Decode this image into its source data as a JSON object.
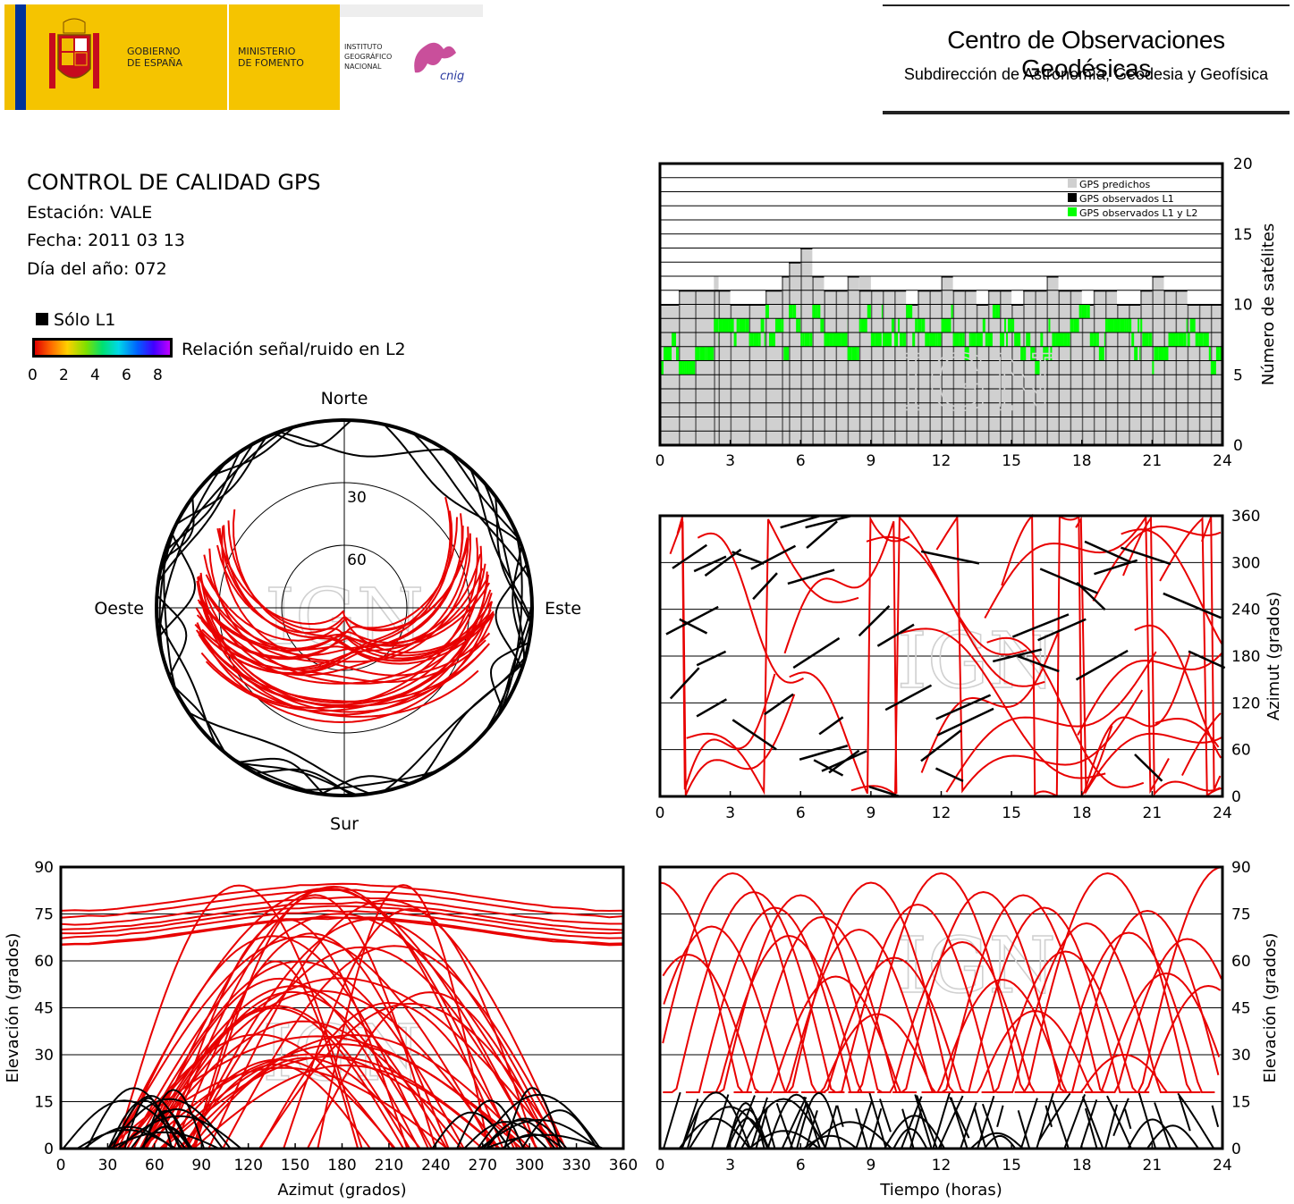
{
  "header": {
    "gov_line1": "GOBIERNO",
    "gov_line2": "DE ESPAÑA",
    "min_line1": "MINISTERIO",
    "min_line2": "DE FOMENTO",
    "ign_line1": "INSTITUTO",
    "ign_line2": "GEOGRÁFICO",
    "ign_line3": "NACIONAL",
    "cnig": "cnig",
    "center_title": "Centro de Observaciones Geodésicas",
    "center_subtitle": "Subdirección de Astronomía, Geodesia y Geofísica"
  },
  "info": {
    "title": "CONTROL DE CALIDAD GPS",
    "station": "Estación: VALE",
    "date": "Fecha: 2011 03 13",
    "doy": "Día del año: 072",
    "solo_l1": "Sólo L1",
    "snr_label": "Relación señal/ruido en L2",
    "snr_ticks": [
      "0",
      "2",
      "4",
      "6",
      "8"
    ]
  },
  "watermark": "IGN",
  "colors": {
    "predicted": "#d0d0d0",
    "observed_l1": "#000000",
    "observed_l1_l2": "#00ff00",
    "track_l2": "#e80000",
    "track_l1": "#000000"
  },
  "chart_data": [
    {
      "type": "area",
      "id": "satellites",
      "ylabel": "Número de satélites",
      "legend": [
        "GPS predichos",
        "GPS observados L1",
        "GPS observados L1 y L2"
      ],
      "legend_position": "top-right",
      "x_ticks": [
        "0",
        "3",
        "6",
        "9",
        "12",
        "15",
        "18",
        "21",
        "24"
      ],
      "y_ticks": [
        "0",
        "5",
        "10",
        "15",
        "20"
      ],
      "xlim": [
        0,
        24
      ],
      "ylim": [
        0,
        20
      ],
      "grid": true,
      "series": [
        {
          "name": "GPS predichos",
          "x": [
            0,
            0.8,
            1.5,
            2.3,
            2.5,
            3,
            3.8,
            4.5,
            5.2,
            5.5,
            6,
            6.5,
            7,
            7.5,
            8,
            8.5,
            9,
            9.5,
            10,
            10.5,
            11,
            11.5,
            12,
            12.5,
            13,
            13.5,
            14,
            14.5,
            15,
            15.5,
            16,
            16.5,
            17,
            17.5,
            18,
            18.5,
            19,
            19.5,
            20,
            20.5,
            21,
            21.5,
            22,
            22.5,
            23,
            23.5,
            24
          ],
          "values": [
            10,
            11,
            11,
            12,
            11,
            10,
            10,
            11,
            12,
            13,
            14,
            12,
            11,
            11,
            12,
            12,
            11,
            11,
            11,
            10,
            11,
            11,
            12,
            11,
            11,
            10,
            11,
            11,
            10,
            11,
            11,
            12,
            11,
            11,
            10,
            11,
            11,
            10,
            10,
            11,
            12,
            11,
            11,
            10,
            10,
            10,
            10
          ]
        },
        {
          "name": "GPS observados L1",
          "x": [
            0,
            0.8,
            1.5,
            2.3,
            2.5,
            3,
            3.8,
            4.5,
            5.2,
            5.5,
            6,
            6.5,
            7,
            7.5,
            8,
            8.5,
            9,
            9.5,
            10,
            10.5,
            11,
            11.5,
            12,
            12.5,
            13,
            13.5,
            14,
            14.5,
            15,
            15.5,
            16,
            16.5,
            17,
            17.5,
            18,
            18.5,
            19,
            19.5,
            20,
            20.5,
            21,
            21.5,
            22,
            22.5,
            23,
            23.5,
            24
          ],
          "values": [
            10,
            11,
            11,
            11,
            11,
            10,
            10,
            11,
            12,
            13,
            14,
            12,
            11,
            11,
            12,
            11,
            11,
            11,
            11,
            10,
            11,
            11,
            12,
            11,
            11,
            10,
            11,
            11,
            10,
            11,
            11,
            12,
            11,
            11,
            10,
            11,
            11,
            10,
            10,
            11,
            12,
            11,
            11,
            10,
            10,
            10,
            10
          ]
        },
        {
          "name": "GPS observados L1 y L2",
          "x": [
            0,
            0.8,
            1.5,
            2.3,
            2.5,
            3,
            3.8,
            4.5,
            5.2,
            5.5,
            6,
            6.5,
            7,
            7.5,
            8,
            8.5,
            9,
            9.5,
            10,
            10.5,
            11,
            11.5,
            12,
            12.5,
            13,
            13.5,
            14,
            14.5,
            15,
            15.5,
            16,
            16.5,
            17,
            17.5,
            18,
            18.5,
            19,
            19.5,
            20,
            20.5,
            21,
            21.5,
            22,
            22.5,
            23,
            23.5,
            24
          ],
          "values": [
            7,
            6,
            7,
            8,
            9,
            9,
            8,
            9,
            8,
            9,
            8,
            9,
            8,
            8,
            7,
            9,
            9,
            8,
            8,
            9,
            8,
            8,
            9,
            8,
            8,
            8,
            9,
            9,
            8,
            8,
            7,
            8,
            8,
            9,
            9,
            8,
            9,
            9,
            8,
            8,
            7,
            8,
            8,
            8,
            8,
            7,
            7
          ]
        }
      ]
    },
    {
      "type": "scatter",
      "id": "skyplot",
      "direction_labels": {
        "north": "Norte",
        "south": "Sur",
        "west": "Oeste",
        "east": "Este"
      },
      "ring_labels": [
        "30",
        "60"
      ],
      "ring_elevations": [
        0,
        30,
        60
      ],
      "tracks_note": "satellite tracks azimuth/elevation, colored by L2 SNR"
    },
    {
      "type": "scatter",
      "id": "azimuth_vs_time",
      "ylabel": "Azimut (grados)",
      "x_ticks": [
        "0",
        "3",
        "6",
        "9",
        "12",
        "15",
        "18",
        "21",
        "24"
      ],
      "y_ticks": [
        "0",
        "60",
        "120",
        "180",
        "240",
        "300",
        "360"
      ],
      "xlim": [
        0,
        24
      ],
      "ylim": [
        0,
        360
      ],
      "grid": true
    },
    {
      "type": "scatter",
      "id": "elevation_vs_azimuth",
      "xlabel": "Azimut (grados)",
      "ylabel": "Elevación (grados)",
      "x_ticks": [
        "0",
        "30",
        "60",
        "90",
        "120",
        "150",
        "180",
        "210",
        "240",
        "270",
        "300",
        "330",
        "360"
      ],
      "y_ticks": [
        "0",
        "15",
        "30",
        "45",
        "60",
        "75",
        "90"
      ],
      "xlim": [
        0,
        360
      ],
      "ylim": [
        0,
        90
      ],
      "grid": true
    },
    {
      "type": "line",
      "id": "elevation_vs_time",
      "xlabel": "Tiempo (horas)",
      "ylabel": "Elevación (grados)",
      "x_ticks": [
        "0",
        "3",
        "6",
        "9",
        "12",
        "15",
        "18",
        "21",
        "24"
      ],
      "y_ticks": [
        "0",
        "15",
        "30",
        "45",
        "60",
        "75",
        "90"
      ],
      "xlim": [
        0,
        24
      ],
      "ylim": [
        0,
        90
      ],
      "grid": true,
      "series": [
        {
          "t_peak": 0.0,
          "peak": 85
        },
        {
          "t_peak": 1.2,
          "peak": 62
        },
        {
          "t_peak": 2.2,
          "peak": 71
        },
        {
          "t_peak": 3.1,
          "peak": 88
        },
        {
          "t_peak": 4.0,
          "peak": 82
        },
        {
          "t_peak": 4.9,
          "peak": 77
        },
        {
          "t_peak": 5.5,
          "peak": 68
        },
        {
          "t_peak": 6.0,
          "peak": 81
        },
        {
          "t_peak": 6.9,
          "peak": 74
        },
        {
          "t_peak": 7.5,
          "peak": 55
        },
        {
          "t_peak": 8.5,
          "peak": 70
        },
        {
          "t_peak": 9.0,
          "peak": 85
        },
        {
          "t_peak": 10.0,
          "peak": 61
        },
        {
          "t_peak": 11.0,
          "peak": 78
        },
        {
          "t_peak": 12.0,
          "peak": 88
        },
        {
          "t_peak": 12.9,
          "peak": 66
        },
        {
          "t_peak": 13.8,
          "peak": 82
        },
        {
          "t_peak": 14.6,
          "peak": 54
        },
        {
          "t_peak": 15.5,
          "peak": 81
        },
        {
          "t_peak": 16.4,
          "peak": 77
        },
        {
          "t_peak": 17.3,
          "peak": 63
        },
        {
          "t_peak": 18.2,
          "peak": 72
        },
        {
          "t_peak": 19.1,
          "peak": 88
        },
        {
          "t_peak": 20.0,
          "peak": 69
        },
        {
          "t_peak": 20.8,
          "peak": 76
        },
        {
          "t_peak": 21.6,
          "peak": 56
        },
        {
          "t_peak": 22.5,
          "peak": 67
        },
        {
          "t_peak": 23.4,
          "peak": 52
        },
        {
          "t_peak": 24.0,
          "peak": 90
        },
        {
          "t_peak": 9.3,
          "peak": 43
        },
        {
          "t_peak": 16.0,
          "peak": 44
        },
        {
          "t_peak": 19.8,
          "peak": 30
        }
      ]
    }
  ]
}
